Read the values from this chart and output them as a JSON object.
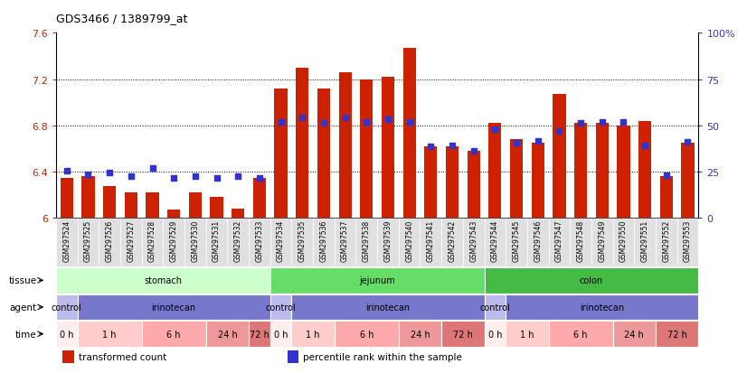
{
  "title": "GDS3466 / 1389799_at",
  "samples": [
    "GSM297524",
    "GSM297525",
    "GSM297526",
    "GSM297527",
    "GSM297528",
    "GSM297529",
    "GSM297530",
    "GSM297531",
    "GSM297532",
    "GSM297533",
    "GSM297534",
    "GSM297535",
    "GSM297536",
    "GSM297537",
    "GSM297538",
    "GSM297539",
    "GSM297540",
    "GSM297541",
    "GSM297542",
    "GSM297543",
    "GSM297544",
    "GSM297545",
    "GSM297546",
    "GSM297547",
    "GSM297548",
    "GSM297549",
    "GSM297550",
    "GSM297551",
    "GSM297552",
    "GSM297553"
  ],
  "bar_values": [
    6.35,
    6.36,
    6.28,
    6.22,
    6.22,
    6.07,
    6.22,
    6.18,
    6.08,
    6.35,
    7.12,
    7.3,
    7.12,
    7.26,
    7.2,
    7.22,
    7.47,
    6.62,
    6.62,
    6.58,
    6.82,
    6.68,
    6.65,
    7.07,
    6.82,
    6.82,
    6.8,
    6.84,
    6.36,
    6.65
  ],
  "percentile_values": [
    6.41,
    6.38,
    6.39,
    6.36,
    6.43,
    6.35,
    6.36,
    6.35,
    6.36,
    6.35,
    6.83,
    6.87,
    6.82,
    6.87,
    6.83,
    6.85,
    6.83,
    6.62,
    6.63,
    6.58,
    6.77,
    6.65,
    6.67,
    6.75,
    6.82,
    6.83,
    6.83,
    6.63,
    6.37,
    6.66
  ],
  "ylim": [
    6.0,
    7.6
  ],
  "yticks": [
    6.0,
    6.4,
    6.8,
    7.2,
    7.6
  ],
  "ytick_labels_left": [
    "6",
    "6.4",
    "6.8",
    "7.2",
    "7.6"
  ],
  "ytick_labels_right": [
    "0",
    "25",
    "50",
    "75",
    "100%"
  ],
  "bar_color": "#cc2200",
  "dot_color": "#3333cc",
  "tissues": [
    {
      "label": "stomach",
      "start": 0,
      "end": 10,
      "color": "#ccffcc"
    },
    {
      "label": "jejunum",
      "start": 10,
      "end": 20,
      "color": "#66dd66"
    },
    {
      "label": "colon",
      "start": 20,
      "end": 30,
      "color": "#44bb44"
    }
  ],
  "agents": [
    {
      "label": "control",
      "start": 0,
      "end": 1,
      "color": "#bbbbee"
    },
    {
      "label": "irinotecan",
      "start": 1,
      "end": 10,
      "color": "#7777cc"
    },
    {
      "label": "control",
      "start": 10,
      "end": 11,
      "color": "#bbbbee"
    },
    {
      "label": "irinotecan",
      "start": 11,
      "end": 20,
      "color": "#7777cc"
    },
    {
      "label": "control",
      "start": 20,
      "end": 21,
      "color": "#bbbbee"
    },
    {
      "label": "irinotecan",
      "start": 21,
      "end": 30,
      "color": "#7777cc"
    }
  ],
  "times": [
    {
      "label": "0 h",
      "start": 0,
      "end": 1,
      "color": "#ffeeee"
    },
    {
      "label": "1 h",
      "start": 1,
      "end": 4,
      "color": "#ffcccc"
    },
    {
      "label": "6 h",
      "start": 4,
      "end": 7,
      "color": "#ffaaaa"
    },
    {
      "label": "24 h",
      "start": 7,
      "end": 9,
      "color": "#ee9999"
    },
    {
      "label": "72 h",
      "start": 9,
      "end": 10,
      "color": "#dd7777"
    },
    {
      "label": "0 h",
      "start": 10,
      "end": 11,
      "color": "#ffeeee"
    },
    {
      "label": "1 h",
      "start": 11,
      "end": 13,
      "color": "#ffcccc"
    },
    {
      "label": "6 h",
      "start": 13,
      "end": 16,
      "color": "#ffaaaa"
    },
    {
      "label": "24 h",
      "start": 16,
      "end": 18,
      "color": "#ee9999"
    },
    {
      "label": "72 h",
      "start": 18,
      "end": 20,
      "color": "#dd7777"
    },
    {
      "label": "0 h",
      "start": 20,
      "end": 21,
      "color": "#ffeeee"
    },
    {
      "label": "1 h",
      "start": 21,
      "end": 23,
      "color": "#ffcccc"
    },
    {
      "label": "6 h",
      "start": 23,
      "end": 26,
      "color": "#ffaaaa"
    },
    {
      "label": "24 h",
      "start": 26,
      "end": 28,
      "color": "#ee9999"
    },
    {
      "label": "72 h",
      "start": 28,
      "end": 30,
      "color": "#dd7777"
    }
  ],
  "row_labels": [
    "tissue",
    "agent",
    "time"
  ],
  "legend_items": [
    {
      "label": "transformed count",
      "color": "#cc2200"
    },
    {
      "label": "percentile rank within the sample",
      "color": "#3333cc"
    }
  ],
  "label_row_color": "#e0e0e0"
}
